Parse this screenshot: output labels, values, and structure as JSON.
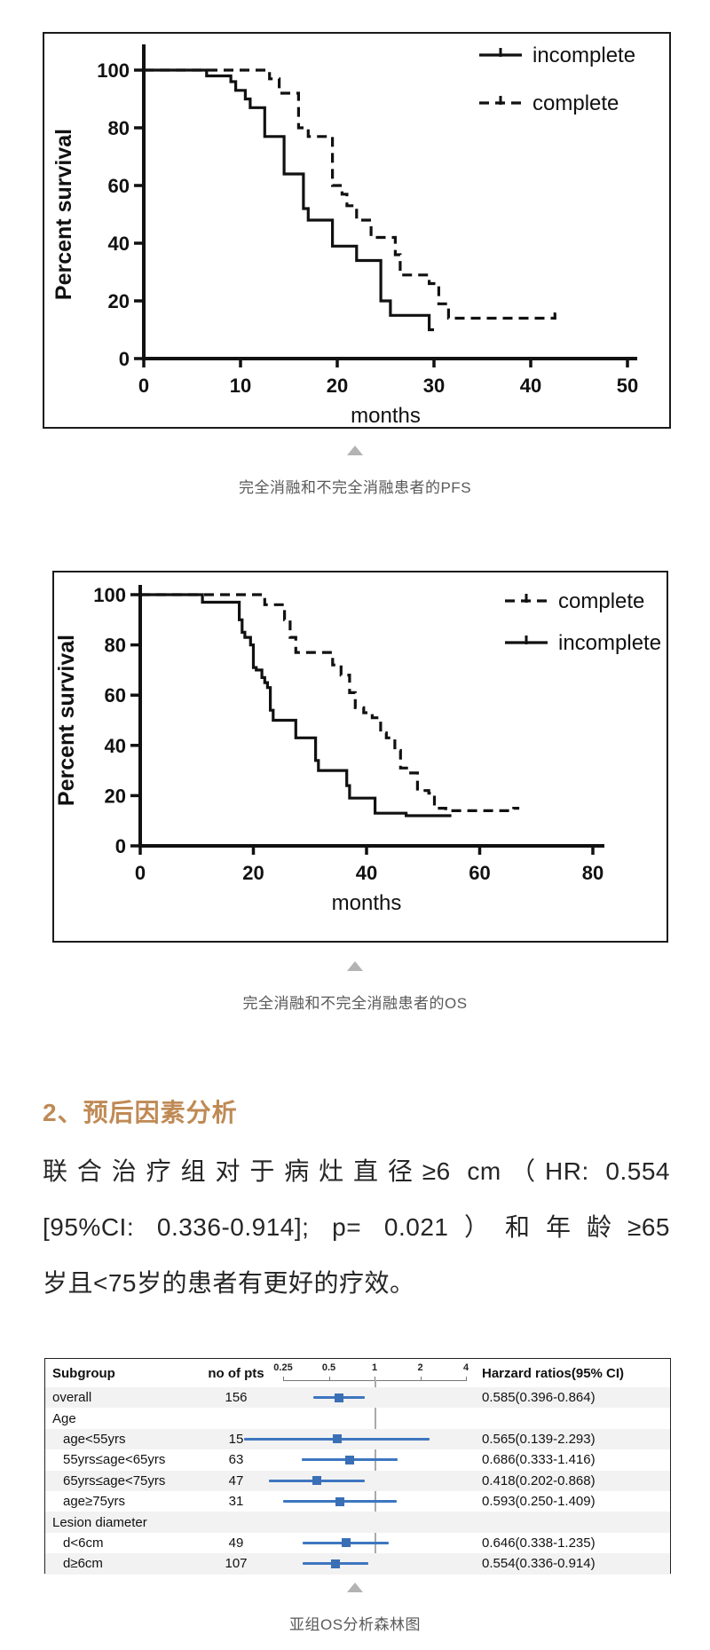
{
  "captions": {
    "pfs": "完全消融和不完全消融患者的PFS",
    "os": "完全消融和不完全消融患者的OS",
    "forest": "亚组OS分析森林图"
  },
  "section": {
    "heading": "2、预后因素分析"
  },
  "paragraph": {
    "lines": [
      "联合治疗组对于病灶直径≥6  cm（HR: 0.554",
      "[95%CI: 0.336-0.914]; p= 0.021）和年龄≥65",
      "岁且<75岁的患者有更好的疗效。"
    ]
  },
  "colors": {
    "accent_heading": "#bf8a55",
    "caption_text": "#595959",
    "triangle": "#b3b3b3",
    "curve": "#111111",
    "forest_blue": "#3d76c0",
    "forest_square": "#3a6fb5",
    "row_shade": "#f2f2f2",
    "ref_line": "#aaaaaa"
  },
  "chart_data": [
    {
      "type": "line",
      "subtype": "kaplan-meier-step",
      "title": "完全消融和不完全消融患者的PFS",
      "xlabel": "months",
      "ylabel": "Percent survival",
      "xlim": [
        0,
        50
      ],
      "ylim": [
        0,
        100
      ],
      "xticks": [
        0,
        10,
        20,
        30,
        40,
        50
      ],
      "yticks": [
        0,
        20,
        40,
        60,
        80,
        100
      ],
      "grid": false,
      "legend_position": "top-right-inside",
      "legend": [
        {
          "name": "incomplete",
          "dash": false
        },
        {
          "name": "complete",
          "dash": true
        }
      ],
      "series": [
        {
          "name": "incomplete",
          "dash": false,
          "points": [
            [
              0,
              100
            ],
            [
              6.5,
              100
            ],
            [
              6.5,
              98
            ],
            [
              9,
              98
            ],
            [
              9,
              96
            ],
            [
              9.5,
              96
            ],
            [
              9.5,
              93
            ],
            [
              10.5,
              93
            ],
            [
              10.5,
              90
            ],
            [
              11,
              90
            ],
            [
              11,
              87
            ],
            [
              12.5,
              87
            ],
            [
              12.5,
              77
            ],
            [
              14.5,
              77
            ],
            [
              14.5,
              64
            ],
            [
              16.5,
              64
            ],
            [
              16.5,
              52
            ],
            [
              17,
              52
            ],
            [
              17,
              48
            ],
            [
              19.5,
              48
            ],
            [
              19.5,
              39
            ],
            [
              22,
              39
            ],
            [
              22,
              34
            ],
            [
              24.5,
              34
            ],
            [
              24.5,
              20
            ],
            [
              25.5,
              20
            ],
            [
              25.5,
              15
            ],
            [
              29.5,
              15
            ],
            [
              29.5,
              10
            ],
            [
              30,
              10
            ]
          ]
        },
        {
          "name": "complete",
          "dash": true,
          "points": [
            [
              0,
              100
            ],
            [
              13,
              100
            ],
            [
              13,
              97
            ],
            [
              14,
              97
            ],
            [
              14,
              92
            ],
            [
              16,
              92
            ],
            [
              16,
              80
            ],
            [
              17,
              80
            ],
            [
              17,
              77
            ],
            [
              19.5,
              77
            ],
            [
              19.5,
              60
            ],
            [
              20.5,
              60
            ],
            [
              20.5,
              57
            ],
            [
              21,
              57
            ],
            [
              21,
              53
            ],
            [
              22,
              53
            ],
            [
              22,
              48
            ],
            [
              23.5,
              48
            ],
            [
              23.5,
              42
            ],
            [
              26,
              42
            ],
            [
              26,
              36
            ],
            [
              26.5,
              36
            ],
            [
              26.5,
              29
            ],
            [
              29.5,
              29
            ],
            [
              29.5,
              26
            ],
            [
              30.5,
              26
            ],
            [
              30.5,
              19
            ],
            [
              31.5,
              19
            ],
            [
              31.5,
              14
            ],
            [
              42.5,
              14
            ],
            [
              42.5,
              15.5
            ],
            [
              43,
              15.5
            ]
          ]
        }
      ]
    },
    {
      "type": "line",
      "subtype": "kaplan-meier-step",
      "title": "完全消融和不完全消融患者的OS",
      "xlabel": "months",
      "ylabel": "Percent survival",
      "xlim": [
        0,
        80
      ],
      "ylim": [
        0,
        100
      ],
      "xticks": [
        0,
        20,
        40,
        60,
        80
      ],
      "yticks": [
        0,
        20,
        40,
        60,
        80,
        100
      ],
      "grid": false,
      "legend_position": "top-right-inside",
      "legend": [
        {
          "name": "complete",
          "dash": true
        },
        {
          "name": "incomplete",
          "dash": false
        }
      ],
      "series": [
        {
          "name": "complete",
          "dash": true,
          "points": [
            [
              0,
              100
            ],
            [
              22,
              100
            ],
            [
              22,
              96
            ],
            [
              25.5,
              96
            ],
            [
              25.5,
              90
            ],
            [
              26.5,
              90
            ],
            [
              26.5,
              83
            ],
            [
              27.5,
              83
            ],
            [
              27.5,
              77
            ],
            [
              34,
              77
            ],
            [
              34,
              72
            ],
            [
              35.5,
              72
            ],
            [
              35.5,
              68
            ],
            [
              37,
              68
            ],
            [
              37,
              61
            ],
            [
              38,
              61
            ],
            [
              38,
              55
            ],
            [
              39.5,
              55
            ],
            [
              39.5,
              53
            ],
            [
              41,
              53
            ],
            [
              41,
              51
            ],
            [
              42.5,
              51
            ],
            [
              42.5,
              45
            ],
            [
              43.5,
              45
            ],
            [
              43.5,
              43
            ],
            [
              45,
              43
            ],
            [
              45,
              38
            ],
            [
              46,
              38
            ],
            [
              46,
              31
            ],
            [
              47.5,
              31
            ],
            [
              47.5,
              29
            ],
            [
              49,
              29
            ],
            [
              49,
              22
            ],
            [
              51,
              22
            ],
            [
              51,
              21
            ],
            [
              52,
              21
            ],
            [
              52,
              15
            ],
            [
              54,
              15
            ],
            [
              54,
              14
            ],
            [
              66,
              14
            ],
            [
              66,
              15
            ],
            [
              67,
              15
            ]
          ]
        },
        {
          "name": "incomplete",
          "dash": false,
          "points": [
            [
              0,
              100
            ],
            [
              11,
              100
            ],
            [
              11,
              97
            ],
            [
              17.5,
              97
            ],
            [
              17.5,
              90
            ],
            [
              18,
              90
            ],
            [
              18,
              85
            ],
            [
              18.5,
              85
            ],
            [
              18.5,
              83
            ],
            [
              19.5,
              83
            ],
            [
              19.5,
              80
            ],
            [
              20,
              80
            ],
            [
              20,
              71
            ],
            [
              20.5,
              71
            ],
            [
              20.5,
              70
            ],
            [
              21.5,
              70
            ],
            [
              21.5,
              67
            ],
            [
              22,
              67
            ],
            [
              22,
              65
            ],
            [
              22.5,
              65
            ],
            [
              22.5,
              63
            ],
            [
              23,
              63
            ],
            [
              23,
              54
            ],
            [
              23.5,
              54
            ],
            [
              23.5,
              50
            ],
            [
              27.5,
              50
            ],
            [
              27.5,
              43
            ],
            [
              31,
              43
            ],
            [
              31,
              34
            ],
            [
              31.5,
              34
            ],
            [
              31.5,
              30
            ],
            [
              36.5,
              30
            ],
            [
              36.5,
              24
            ],
            [
              37,
              24
            ],
            [
              37,
              19
            ],
            [
              41.5,
              19
            ],
            [
              41.5,
              13
            ],
            [
              47,
              13
            ],
            [
              47,
              12
            ],
            [
              55,
              12
            ]
          ]
        }
      ]
    },
    {
      "type": "forest",
      "title": "亚组OS分析森林图",
      "columns": [
        "Subgroup",
        "no of pts",
        "Harzard ratios(95% CI)"
      ],
      "axis_ticks": [
        0.25,
        0.5,
        1,
        2,
        4
      ],
      "scale": "log2",
      "ref_value": 1,
      "rows": [
        {
          "label": "overall",
          "indent": false,
          "group": false,
          "n": "156",
          "hr": 0.585,
          "lo": 0.396,
          "hi": 0.864,
          "text": "0.585(0.396-0.864)",
          "shade": true
        },
        {
          "label": "Age",
          "indent": false,
          "group": true,
          "n": "",
          "text": "",
          "shade": false
        },
        {
          "label": "age<55yrs",
          "indent": true,
          "group": false,
          "n": "15",
          "hr": 0.565,
          "lo": 0.139,
          "hi": 2.293,
          "text": "0.565(0.139-2.293)",
          "shade": true
        },
        {
          "label": "55yrs≤age<65yrs",
          "indent": true,
          "group": false,
          "n": "63",
          "hr": 0.686,
          "lo": 0.333,
          "hi": 1.416,
          "text": "0.686(0.333-1.416)",
          "shade": false
        },
        {
          "label": "65yrs≤age<75yrs",
          "indent": true,
          "group": false,
          "n": "47",
          "hr": 0.418,
          "lo": 0.202,
          "hi": 0.868,
          "text": "0.418(0.202-0.868)",
          "shade": true
        },
        {
          "label": "age≥75yrs",
          "indent": true,
          "group": false,
          "n": "31",
          "hr": 0.593,
          "lo": 0.25,
          "hi": 1.409,
          "text": "0.593(0.250-1.409)",
          "shade": false
        },
        {
          "label": "Lesion diameter",
          "indent": false,
          "group": true,
          "n": "",
          "text": "",
          "shade": true
        },
        {
          "label": "d<6cm",
          "indent": true,
          "group": false,
          "n": "49",
          "hr": 0.646,
          "lo": 0.338,
          "hi": 1.235,
          "text": "0.646(0.338-1.235)",
          "shade": false
        },
        {
          "label": "d≥6cm",
          "indent": true,
          "group": false,
          "n": "107",
          "hr": 0.554,
          "lo": 0.336,
          "hi": 0.914,
          "text": "0.554(0.336-0.914)",
          "shade": true
        }
      ]
    }
  ]
}
